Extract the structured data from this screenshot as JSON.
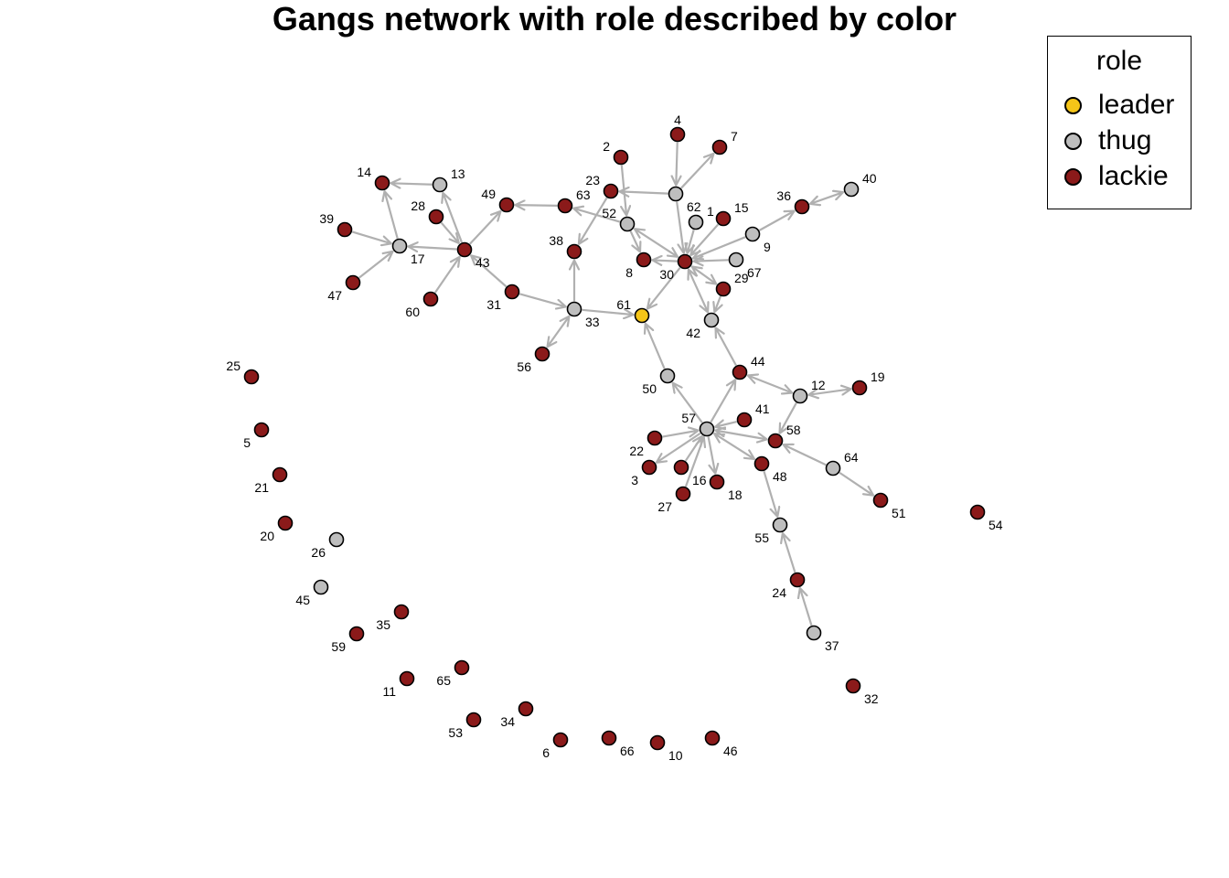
{
  "title": "Gangs network with role described by color",
  "legend": {
    "title": "role",
    "items": [
      {
        "label": "leader",
        "color": "#f5c518"
      },
      {
        "label": "thug",
        "color": "#bebebe"
      },
      {
        "label": "lackie",
        "color": "#8b1a1a"
      }
    ]
  },
  "colors": {
    "edge": "#b0b0b0",
    "node_border": "#000000"
  },
  "nodes": [
    {
      "id": "1",
      "role": "thug"
    },
    {
      "id": "2",
      "role": "lackie"
    },
    {
      "id": "3",
      "role": "lackie"
    },
    {
      "id": "4",
      "role": "lackie"
    },
    {
      "id": "5",
      "role": "lackie"
    },
    {
      "id": "6",
      "role": "lackie"
    },
    {
      "id": "7",
      "role": "lackie"
    },
    {
      "id": "8",
      "role": "lackie"
    },
    {
      "id": "9",
      "role": "thug"
    },
    {
      "id": "10",
      "role": "lackie"
    },
    {
      "id": "11",
      "role": "lackie"
    },
    {
      "id": "12",
      "role": "thug"
    },
    {
      "id": "13",
      "role": "thug"
    },
    {
      "id": "14",
      "role": "lackie"
    },
    {
      "id": "15",
      "role": "lackie"
    },
    {
      "id": "16",
      "role": "lackie"
    },
    {
      "id": "17",
      "role": "thug"
    },
    {
      "id": "18",
      "role": "lackie"
    },
    {
      "id": "19",
      "role": "lackie"
    },
    {
      "id": "20",
      "role": "lackie"
    },
    {
      "id": "21",
      "role": "lackie"
    },
    {
      "id": "22",
      "role": "lackie"
    },
    {
      "id": "23",
      "role": "lackie"
    },
    {
      "id": "24",
      "role": "lackie"
    },
    {
      "id": "25",
      "role": "lackie"
    },
    {
      "id": "26",
      "role": "thug"
    },
    {
      "id": "27",
      "role": "lackie"
    },
    {
      "id": "28",
      "role": "lackie"
    },
    {
      "id": "29",
      "role": "lackie"
    },
    {
      "id": "30",
      "role": "lackie"
    },
    {
      "id": "31",
      "role": "lackie"
    },
    {
      "id": "32",
      "role": "lackie"
    },
    {
      "id": "33",
      "role": "thug"
    },
    {
      "id": "34",
      "role": "lackie"
    },
    {
      "id": "35",
      "role": "lackie"
    },
    {
      "id": "36",
      "role": "lackie"
    },
    {
      "id": "37",
      "role": "thug"
    },
    {
      "id": "38",
      "role": "lackie"
    },
    {
      "id": "39",
      "role": "lackie"
    },
    {
      "id": "40",
      "role": "thug"
    },
    {
      "id": "41",
      "role": "lackie"
    },
    {
      "id": "42",
      "role": "thug"
    },
    {
      "id": "43",
      "role": "lackie"
    },
    {
      "id": "44",
      "role": "lackie"
    },
    {
      "id": "45",
      "role": "thug"
    },
    {
      "id": "46",
      "role": "lackie"
    },
    {
      "id": "47",
      "role": "lackie"
    },
    {
      "id": "48",
      "role": "lackie"
    },
    {
      "id": "49",
      "role": "lackie"
    },
    {
      "id": "50",
      "role": "thug"
    },
    {
      "id": "51",
      "role": "lackie"
    },
    {
      "id": "52",
      "role": "thug"
    },
    {
      "id": "53",
      "role": "lackie"
    },
    {
      "id": "54",
      "role": "lackie"
    },
    {
      "id": "55",
      "role": "thug"
    },
    {
      "id": "56",
      "role": "lackie"
    },
    {
      "id": "57",
      "role": "thug"
    },
    {
      "id": "58",
      "role": "lackie"
    },
    {
      "id": "59",
      "role": "lackie"
    },
    {
      "id": "60",
      "role": "lackie"
    },
    {
      "id": "61",
      "role": "leader"
    },
    {
      "id": "62",
      "role": "thug"
    },
    {
      "id": "63",
      "role": "lackie"
    },
    {
      "id": "64",
      "role": "thug"
    },
    {
      "id": "65",
      "role": "lackie"
    },
    {
      "id": "66",
      "role": "lackie"
    },
    {
      "id": "67",
      "role": "thug"
    }
  ],
  "edges": [
    {
      "from": "13",
      "to": "14",
      "dir": "to"
    },
    {
      "from": "17",
      "to": "14",
      "dir": "to"
    },
    {
      "from": "39",
      "to": "17",
      "dir": "to"
    },
    {
      "from": "47",
      "to": "17",
      "dir": "to"
    },
    {
      "from": "43",
      "to": "17",
      "dir": "to"
    },
    {
      "from": "43",
      "to": "13",
      "dir": "to"
    },
    {
      "from": "28",
      "to": "43",
      "dir": "to"
    },
    {
      "from": "60",
      "to": "43",
      "dir": "to"
    },
    {
      "from": "43",
      "to": "49",
      "dir": "to"
    },
    {
      "from": "31",
      "to": "43",
      "dir": "to"
    },
    {
      "from": "31",
      "to": "33",
      "dir": "to"
    },
    {
      "from": "56",
      "to": "33",
      "dir": "both"
    },
    {
      "from": "33",
      "to": "38",
      "dir": "to"
    },
    {
      "from": "33",
      "to": "61",
      "dir": "to"
    },
    {
      "from": "63",
      "to": "49",
      "dir": "to"
    },
    {
      "from": "52",
      "to": "63",
      "dir": "to"
    },
    {
      "from": "23",
      "to": "38",
      "dir": "to"
    },
    {
      "from": "2",
      "to": "52",
      "dir": "to"
    },
    {
      "from": "62",
      "to": "23",
      "dir": "to"
    },
    {
      "from": "4",
      "to": "62",
      "dir": "to"
    },
    {
      "from": "62",
      "to": "7",
      "dir": "to"
    },
    {
      "from": "62",
      "to": "30",
      "dir": "to"
    },
    {
      "from": "52",
      "to": "8",
      "dir": "to"
    },
    {
      "from": "52",
      "to": "30",
      "dir": "both"
    },
    {
      "from": "30",
      "to": "8",
      "dir": "to"
    },
    {
      "from": "1",
      "to": "30",
      "dir": "to"
    },
    {
      "from": "15",
      "to": "30",
      "dir": "to"
    },
    {
      "from": "9",
      "to": "30",
      "dir": "to"
    },
    {
      "from": "9",
      "to": "36",
      "dir": "to"
    },
    {
      "from": "36",
      "to": "40",
      "dir": "both"
    },
    {
      "from": "67",
      "to": "30",
      "dir": "to"
    },
    {
      "from": "29",
      "to": "30",
      "dir": "both"
    },
    {
      "from": "29",
      "to": "42",
      "dir": "to"
    },
    {
      "from": "42",
      "to": "30",
      "dir": "both"
    },
    {
      "from": "30",
      "to": "61",
      "dir": "to"
    },
    {
      "from": "50",
      "to": "61",
      "dir": "to"
    },
    {
      "from": "57",
      "to": "50",
      "dir": "to"
    },
    {
      "from": "44",
      "to": "42",
      "dir": "to"
    },
    {
      "from": "57",
      "to": "44",
      "dir": "to"
    },
    {
      "from": "12",
      "to": "44",
      "dir": "both"
    },
    {
      "from": "12",
      "to": "19",
      "dir": "both"
    },
    {
      "from": "12",
      "to": "58",
      "dir": "to"
    },
    {
      "from": "41",
      "to": "57",
      "dir": "to"
    },
    {
      "from": "58",
      "to": "57",
      "dir": "both"
    },
    {
      "from": "22",
      "to": "57",
      "dir": "to"
    },
    {
      "from": "57",
      "to": "3",
      "dir": "to"
    },
    {
      "from": "16",
      "to": "57",
      "dir": "to"
    },
    {
      "from": "27",
      "to": "57",
      "dir": "to"
    },
    {
      "from": "57",
      "to": "18",
      "dir": "to"
    },
    {
      "from": "57",
      "to": "48",
      "dir": "both"
    },
    {
      "from": "64",
      "to": "58",
      "dir": "to"
    },
    {
      "from": "64",
      "to": "51",
      "dir": "to"
    },
    {
      "from": "48",
      "to": "55",
      "dir": "to"
    },
    {
      "from": "24",
      "to": "55",
      "dir": "to"
    },
    {
      "from": "37",
      "to": "24",
      "dir": "to"
    }
  ]
}
